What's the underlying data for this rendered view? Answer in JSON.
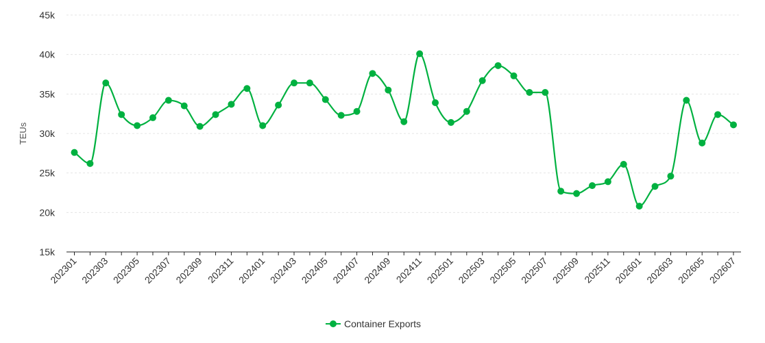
{
  "chart_data": {
    "type": "line",
    "ylabel": "TEUs",
    "xlabel": "",
    "ylim": [
      15000,
      45000
    ],
    "y_ticks": [
      {
        "value": 15000,
        "label": "15k"
      },
      {
        "value": 20000,
        "label": "20k"
      },
      {
        "value": 25000,
        "label": "25k"
      },
      {
        "value": 30000,
        "label": "30k"
      },
      {
        "value": 35000,
        "label": "35k"
      },
      {
        "value": 40000,
        "label": "40k"
      },
      {
        "value": 45000,
        "label": "45k"
      }
    ],
    "x": [
      "202301",
      "202302",
      "202303",
      "202304",
      "202305",
      "202306",
      "202307",
      "202308",
      "202309",
      "202310",
      "202311",
      "202312",
      "202401",
      "202402",
      "202403",
      "202404",
      "202405",
      "202406",
      "202407",
      "202408",
      "202409",
      "202410",
      "202411",
      "202412",
      "202501",
      "202502",
      "202503",
      "202504",
      "202505",
      "202506",
      "202507",
      "202508",
      "202509",
      "202510",
      "202511",
      "202512",
      "202601",
      "202602",
      "202603",
      "202604",
      "202605",
      "202606",
      "202607"
    ],
    "x_tick_labels": [
      "202301",
      "202303",
      "202305",
      "202307",
      "202309",
      "202311",
      "202401",
      "202403",
      "202405",
      "202407",
      "202409",
      "202411",
      "202501",
      "202503",
      "202505",
      "202507",
      "202509",
      "202511",
      "202601",
      "202603",
      "202605",
      "202607"
    ],
    "series": [
      {
        "name": "Container Exports",
        "color": "#00b140",
        "values": [
          27600,
          26200,
          36400,
          32400,
          31000,
          32000,
          34200,
          33500,
          30900,
          32400,
          33700,
          35700,
          31000,
          33600,
          36400,
          36400,
          34300,
          32300,
          32800,
          37600,
          35500,
          31500,
          40100,
          33900,
          31400,
          32800,
          36700,
          38600,
          37300,
          35200,
          35200,
          22700,
          22400,
          23400,
          23900,
          26100,
          20800,
          23300,
          24600,
          34200,
          28800,
          32400,
          31100
        ]
      }
    ],
    "grid": true,
    "legend": "bottom-center"
  }
}
